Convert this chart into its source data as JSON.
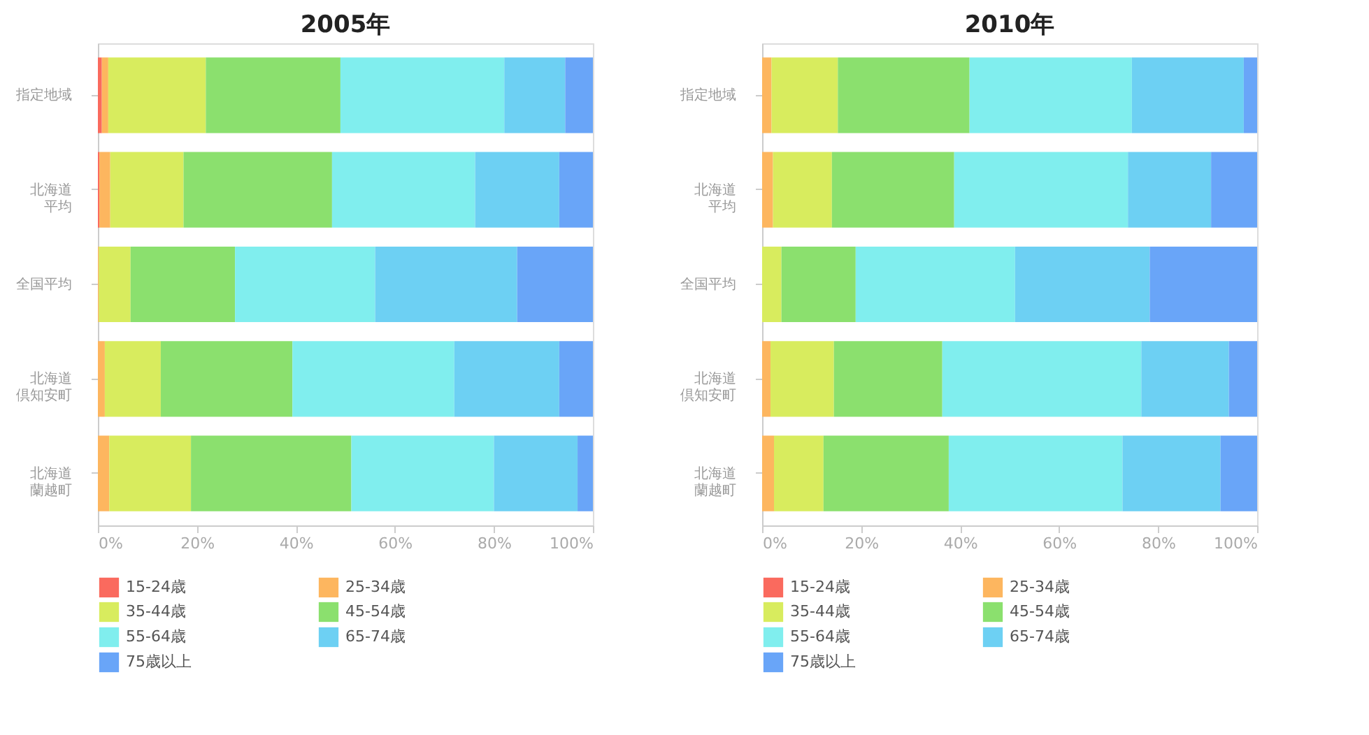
{
  "chart_data": [
    {
      "type": "bar",
      "title": "2005年",
      "orientation": "horizontal",
      "stacked": true,
      "legend": "bottom",
      "grid": false,
      "categories": [
        "指定地域",
        "北海道平均",
        "全国平均",
        "北海道倶知安町",
        "北海道蘭越町"
      ],
      "xlim": [
        0,
        100
      ],
      "xticks": [
        {
          "value": 0,
          "label": "0%"
        },
        {
          "value": 20,
          "label": "20%"
        },
        {
          "value": 40,
          "label": "40%"
        },
        {
          "value": 60,
          "label": "60%"
        },
        {
          "value": 80,
          "label": "80%"
        },
        {
          "value": 100,
          "label": "100%"
        }
      ],
      "series": [
        {
          "name": "15-24歳",
          "color": "#fa6a5e",
          "values": [
            0.8,
            0.3,
            0,
            0,
            0
          ]
        },
        {
          "name": "25-34歳",
          "color": "#fdb65f",
          "values": [
            1.3,
            2.2,
            0.2,
            1.4,
            2.3
          ]
        },
        {
          "name": "35-44歳",
          "color": "#d8ec5e",
          "values": [
            19.7,
            14.8,
            6.4,
            11.3,
            16.5
          ]
        },
        {
          "name": "45-54歳",
          "color": "#8be06e",
          "values": [
            27.2,
            30.0,
            21.1,
            26.6,
            32.4
          ]
        },
        {
          "name": "55-64歳",
          "color": "#80eeee",
          "values": [
            33.1,
            28.9,
            28.3,
            32.7,
            28.8
          ]
        },
        {
          "name": "65-74歳",
          "color": "#6dd0f3",
          "values": [
            12.3,
            17.0,
            28.7,
            21.2,
            16.9
          ]
        },
        {
          "name": "75歳以上",
          "color": "#69a5f8",
          "values": [
            5.6,
            6.8,
            15.3,
            6.8,
            3.1
          ]
        }
      ]
    },
    {
      "type": "bar",
      "title": "2010年",
      "orientation": "horizontal",
      "stacked": true,
      "legend": "bottom",
      "grid": false,
      "categories": [
        "指定地域",
        "北海道平均",
        "全国平均",
        "北海道倶知安町",
        "北海道蘭越町"
      ],
      "xlim": [
        0,
        100
      ],
      "xticks": [
        {
          "value": 0,
          "label": "0%"
        },
        {
          "value": 20,
          "label": "20%"
        },
        {
          "value": 40,
          "label": "40%"
        },
        {
          "value": 60,
          "label": "60%"
        },
        {
          "value": 80,
          "label": "80%"
        },
        {
          "value": 100,
          "label": "100%"
        }
      ],
      "series": [
        {
          "name": "15-24歳",
          "color": "#fa6a5e",
          "values": [
            0,
            0,
            0,
            0,
            0
          ]
        },
        {
          "name": "25-34歳",
          "color": "#fdb65f",
          "values": [
            1.9,
            2.2,
            0,
            1.7,
            2.4
          ]
        },
        {
          "name": "35-44歳",
          "color": "#d8ec5e",
          "values": [
            13.4,
            11.9,
            3.9,
            12.8,
            10.0
          ]
        },
        {
          "name": "45-54歳",
          "color": "#8be06e",
          "values": [
            26.6,
            24.7,
            15.0,
            21.9,
            25.3
          ]
        },
        {
          "name": "55-64歳",
          "color": "#80eeee",
          "values": [
            32.8,
            35.1,
            32.2,
            40.2,
            35.1
          ]
        },
        {
          "name": "65-74歳",
          "color": "#6dd0f3",
          "values": [
            22.6,
            16.8,
            27.2,
            17.7,
            19.8
          ]
        },
        {
          "name": "75歳以上",
          "color": "#69a5f8",
          "values": [
            2.7,
            9.3,
            21.7,
            5.7,
            7.4
          ]
        }
      ]
    }
  ]
}
